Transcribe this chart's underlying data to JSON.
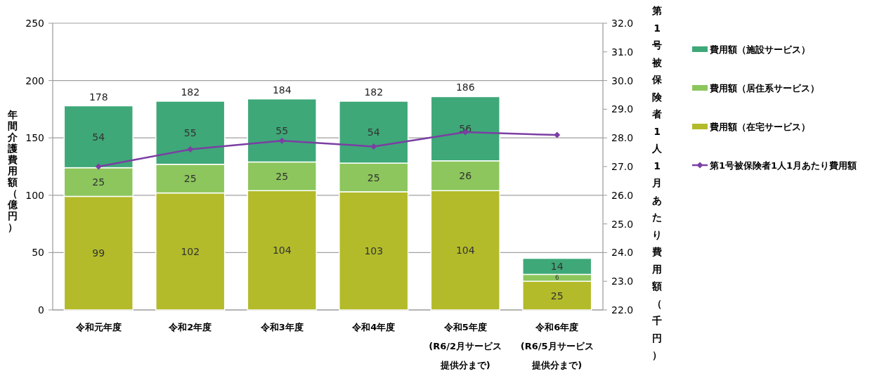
{
  "chart_data": {
    "type": "bar",
    "stacked": true,
    "ylabel": "年間介護費用額（億円）",
    "y2label": "第1号被保険者1人1月あたり費用額（千円）",
    "categories": [
      "令和元年度",
      "令和2年度",
      "令和3年度",
      "令和4年度",
      "令和5年度\n(R6/2月サービス提供分まで)",
      "令和6年度\n(R6/5月サービス提供分まで)"
    ],
    "series": [
      {
        "name": "費用額（在宅サービス）",
        "color": "#b3bb2a",
        "values": [
          99,
          102,
          104,
          103,
          104,
          25
        ],
        "value_labels": [
          "99",
          "102",
          "104",
          "103",
          "104",
          "25"
        ]
      },
      {
        "name": "費用額（居住系サービス）",
        "color": "#8cc65c",
        "values": [
          25,
          25,
          25,
          25,
          26,
          6
        ],
        "value_labels": [
          "25",
          "25",
          "25",
          "25",
          "26",
          "6"
        ]
      },
      {
        "name": "費用額（施設サービス）",
        "color": "#3ea878",
        "values": [
          54,
          55,
          55,
          54,
          56,
          14
        ],
        "value_labels": [
          "54",
          "55",
          "55",
          "54",
          "56",
          "14"
        ]
      },
      {
        "name": "第1号被保険者1人1月あたり費用額",
        "type": "line",
        "axis": "y2",
        "color": "#7b3fa3",
        "marker": "diamond",
        "values": [
          27.0,
          27.6,
          27.9,
          27.7,
          28.2,
          28.1
        ]
      }
    ],
    "totals": [
      "178",
      "182",
      "184",
      "182",
      "186",
      null
    ],
    "ylim": [
      0,
      250
    ],
    "yticks": [
      0,
      50,
      100,
      150,
      200,
      250
    ],
    "y2lim": [
      22,
      32
    ],
    "y2ticks": [
      {
        "value": 22,
        "label": "22.0"
      },
      {
        "value": 23,
        "label": "23.0"
      },
      {
        "value": 24,
        "label": "24.0"
      },
      {
        "value": 25,
        "label": "25.0"
      },
      {
        "value": 26,
        "label": "26.0"
      },
      {
        "value": 27,
        "label": "27.0"
      },
      {
        "value": 28,
        "label": "28.0"
      },
      {
        "value": 29,
        "label": "29.0"
      },
      {
        "value": 30,
        "label": "30.0"
      },
      {
        "value": 31,
        "label": "31.0"
      },
      {
        "value": 32,
        "label": "32.0"
      }
    ],
    "grid": "y",
    "legend": "right"
  }
}
